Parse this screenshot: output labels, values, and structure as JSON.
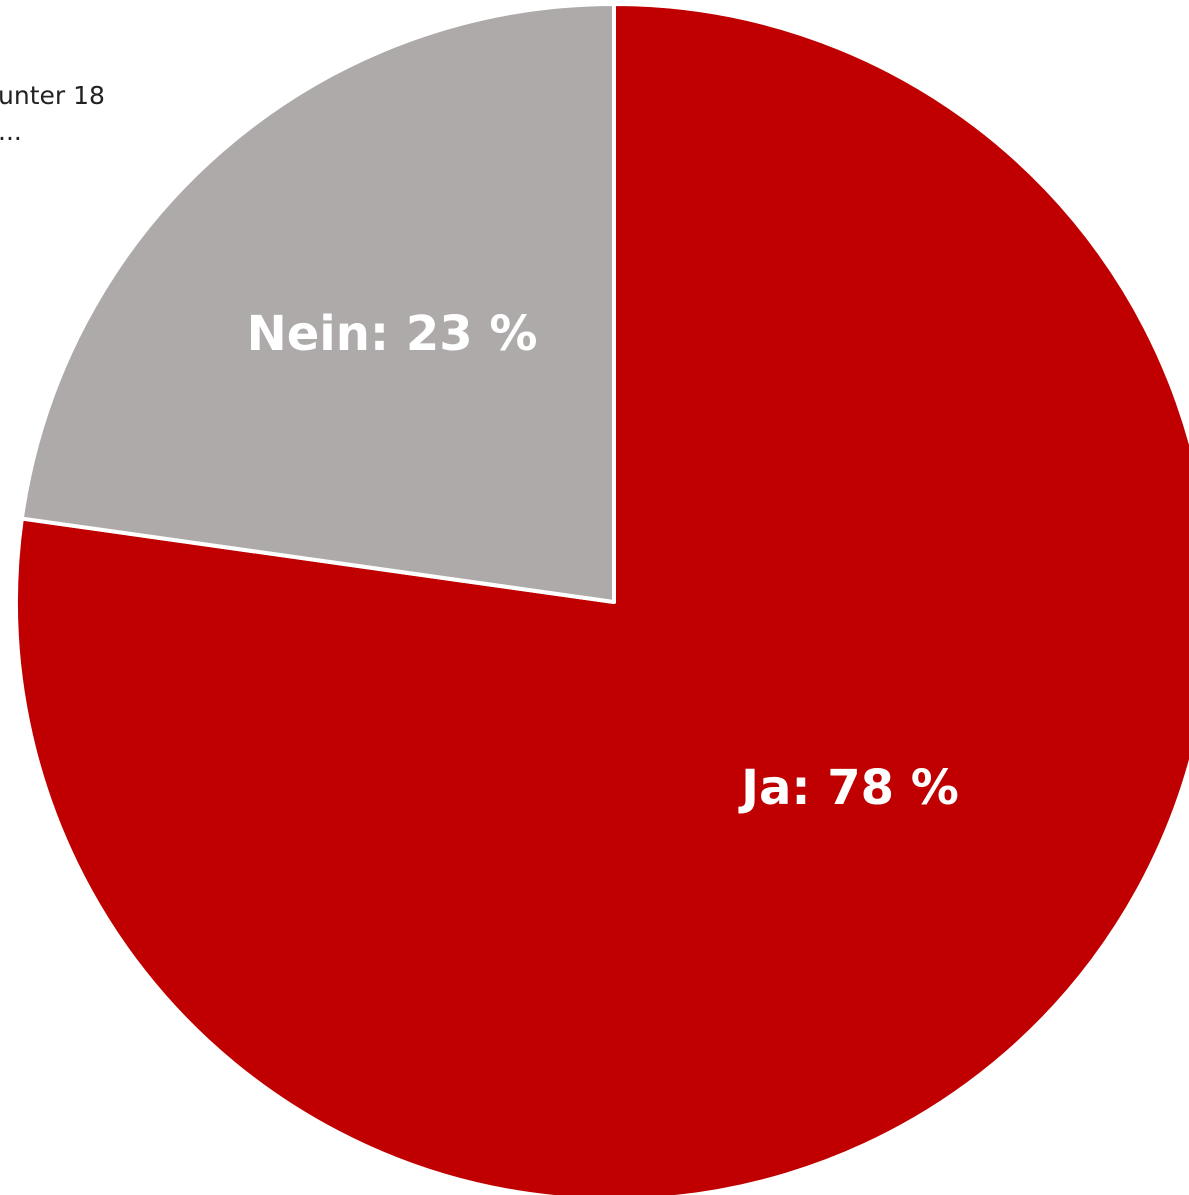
{
  "chart_data": {
    "type": "pie",
    "caption_fragment": [
      "unter 18",
      "..."
    ],
    "slices": [
      {
        "label": "Ja",
        "value": 78,
        "display": "Ja: 78 %",
        "color": "#c00000"
      },
      {
        "label": "Nein",
        "value": 23,
        "display": "Nein: 23 %",
        "color": "#aeaaaa"
      }
    ],
    "slice_border_color": "#ffffff",
    "legend": "none"
  }
}
